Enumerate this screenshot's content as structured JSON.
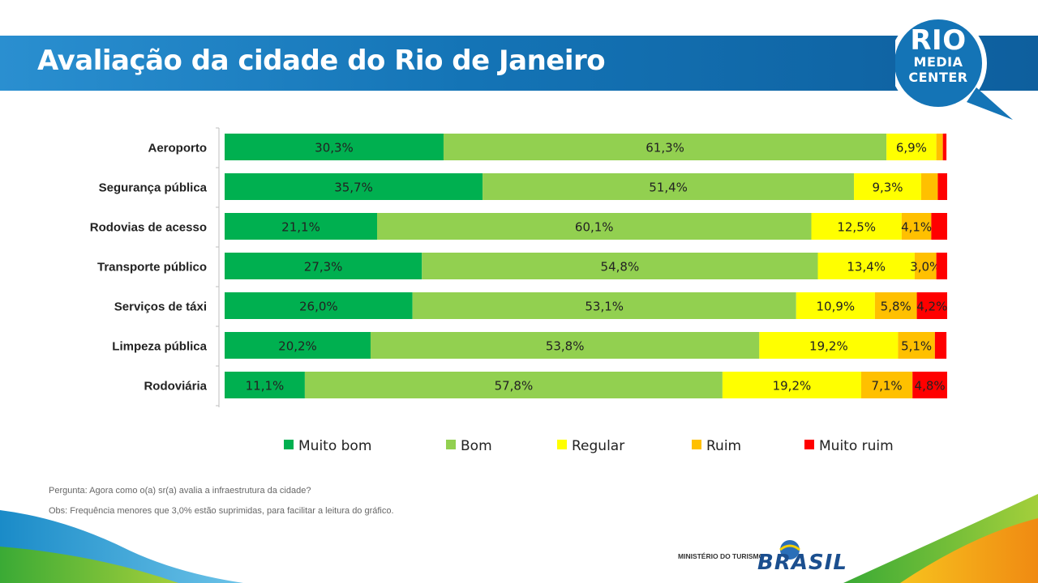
{
  "title": "Avaliação da cidade do Rio de Janeiro",
  "logo": {
    "line1": "RIO",
    "line2": "MEDIA",
    "line3": "CENTER"
  },
  "notes": {
    "question": "Pergunta: Agora como o(a) sr(a) avalia a infraestrutura da cidade?",
    "obs": "Obs: Frequência menores que 3,0% estão suprimidas, para facilitar a leitura do gráfico."
  },
  "footer": {
    "ministry": "MINISTÉRIO DO TURISMO",
    "brand": "BRASIL"
  },
  "colors": {
    "muito_bom": "#00b050",
    "bom": "#92d050",
    "regular": "#ffff00",
    "ruim": "#ffc000",
    "muito_ruim": "#ff0000",
    "banner": "#1474b6"
  },
  "chart_data": {
    "type": "bar",
    "orientation": "horizontal",
    "stacked": true,
    "grid": false,
    "legend_position": "bottom",
    "categories": [
      "Aeroporto",
      "Segurança pública",
      "Rodovias de acesso",
      "Transporte público",
      "Serviços de táxi",
      "Limpeza pública",
      "Rodoviária"
    ],
    "series": [
      {
        "name": "Muito bom",
        "color": "#00b050",
        "values": [
          30.3,
          35.7,
          21.1,
          27.3,
          26.0,
          20.2,
          11.1
        ],
        "labels": [
          "30,3%",
          "35,7%",
          "21,1%",
          "27,3%",
          "26,0%",
          "20,2%",
          "11,1%"
        ]
      },
      {
        "name": "Bom",
        "color": "#92d050",
        "values": [
          61.3,
          51.4,
          60.1,
          54.8,
          53.1,
          53.8,
          57.8
        ],
        "labels": [
          "61,3%",
          "51,4%",
          "60,1%",
          "54,8%",
          "53,1%",
          "53,8%",
          "57,8%"
        ]
      },
      {
        "name": "Regular",
        "color": "#ffff00",
        "values": [
          6.9,
          9.3,
          12.5,
          13.4,
          10.9,
          19.2,
          19.2
        ],
        "labels": [
          "6,9%",
          "9,3%",
          "12,5%",
          "13,4%",
          "10,9%",
          "19,2%",
          "19,2%"
        ]
      },
      {
        "name": "Ruim",
        "color": "#ffc000",
        "values": [
          0.9,
          2.3,
          4.1,
          3.0,
          5.8,
          5.1,
          7.1
        ],
        "labels": [
          "",
          "",
          "4,1%",
          "3,0%",
          "5,8%",
          "5,1%",
          "7,1%"
        ]
      },
      {
        "name": "Muito ruim",
        "color": "#ff0000",
        "values": [
          0.5,
          1.3,
          2.2,
          1.5,
          4.2,
          1.6,
          4.8
        ],
        "labels": [
          "",
          "",
          "",
          "",
          "4,2%",
          "",
          "4,8%"
        ]
      }
    ],
    "xlim": [
      0,
      100
    ]
  }
}
